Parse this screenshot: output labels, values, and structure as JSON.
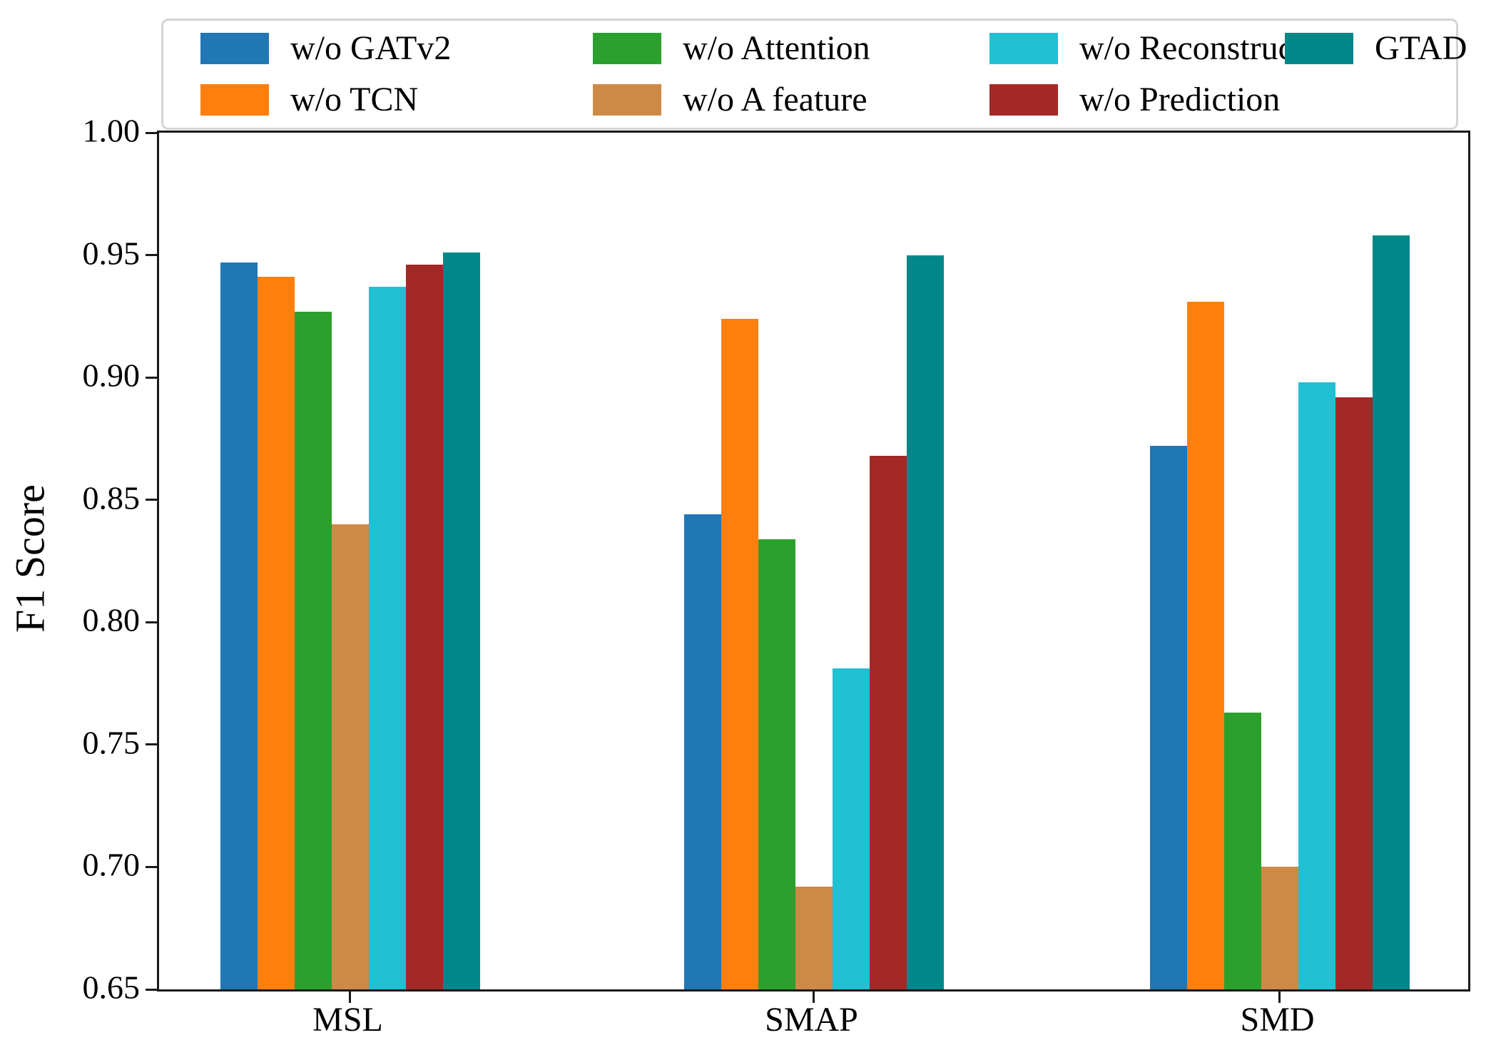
{
  "figure": {
    "background": "#ffffff",
    "axis_color": "#1a1a1a"
  },
  "chart_data": {
    "type": "bar",
    "title": "",
    "xlabel": "",
    "ylabel": "F1 Score",
    "categories": [
      "MSL",
      "SMAP",
      "SMD"
    ],
    "series": [
      {
        "name": "w/o GATv2",
        "color": "#2077b4",
        "values": [
          0.947,
          0.844,
          0.872
        ]
      },
      {
        "name": "w/o TCN",
        "color": "#ff7f0e",
        "values": [
          0.941,
          0.924,
          0.931
        ]
      },
      {
        "name": "w/o Attention",
        "color": "#2ca02c",
        "values": [
          0.927,
          0.834,
          0.763
        ]
      },
      {
        "name": "w/o A feature",
        "color": "#cd8a47",
        "values": [
          0.84,
          0.692,
          0.7
        ]
      },
      {
        "name": "w/o Reconstruction",
        "color": "#22c0d3",
        "values": [
          0.937,
          0.781,
          0.898
        ]
      },
      {
        "name": "w/o Prediction",
        "color": "#a32926",
        "values": [
          0.946,
          0.868,
          0.892
        ]
      },
      {
        "name": "GTAD",
        "color": "#008789",
        "values": [
          0.951,
          0.95,
          0.958
        ]
      }
    ],
    "ylim": [
      0.65,
      1.0
    ],
    "ytick_step": 0.05,
    "ytick_labels": [
      "1.00",
      "0.95",
      "0.90",
      "0.85",
      "0.80",
      "0.75",
      "0.70",
      "0.65"
    ],
    "grid": false,
    "legend_position": "top",
    "legend_columns": [
      [
        0,
        1
      ],
      [
        2,
        3
      ],
      [
        4,
        5
      ],
      [
        6
      ]
    ]
  }
}
